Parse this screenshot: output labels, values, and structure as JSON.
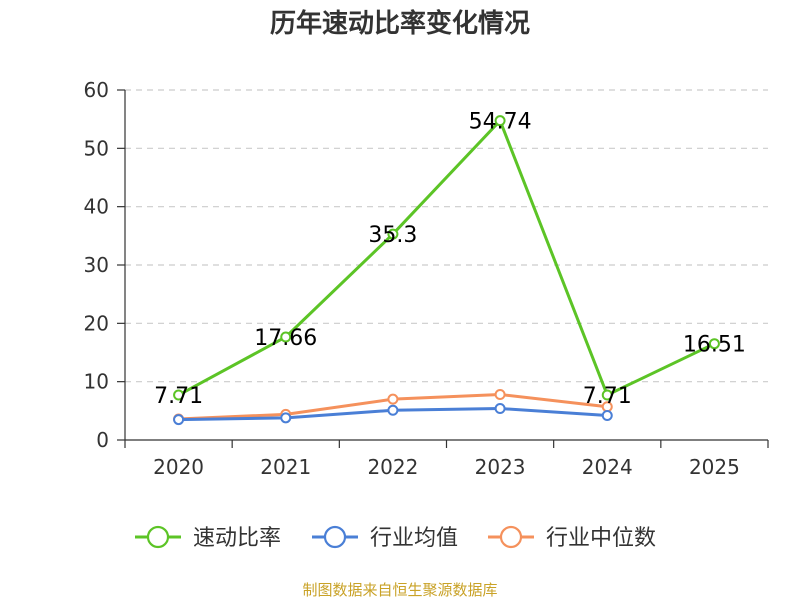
{
  "chart_data": {
    "type": "line",
    "title": "历年速动比率变化情况",
    "categories": [
      "2020",
      "2021",
      "2022",
      "2023",
      "2024",
      "2025"
    ],
    "ylim": [
      0,
      60
    ],
    "yticks": [
      0,
      10,
      20,
      30,
      40,
      50,
      60
    ],
    "grid": true,
    "legend_position": "bottom",
    "series": [
      {
        "name": "速动比率",
        "color": "#5cc426",
        "values": [
          7.71,
          17.66,
          35.3,
          54.74,
          7.71,
          16.51
        ],
        "labels": [
          "7.71",
          "17.66",
          "35.3",
          "54.74",
          "7.71",
          "16.51"
        ]
      },
      {
        "name": "行业均值",
        "color": "#4a7fd6",
        "values": [
          3.5,
          3.8,
          5.1,
          5.4,
          4.2,
          null
        ]
      },
      {
        "name": "行业中位数",
        "color": "#f5915c",
        "values": [
          3.6,
          4.4,
          7.0,
          7.8,
          5.7,
          null
        ]
      }
    ]
  },
  "source_text": "制图数据来自恒生聚源数据库"
}
